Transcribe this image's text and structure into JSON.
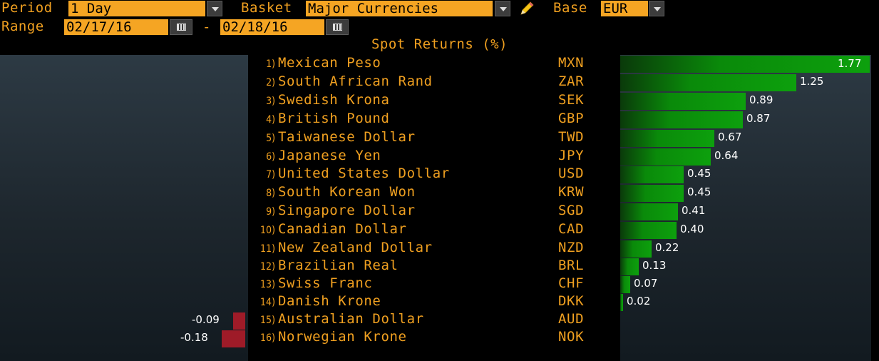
{
  "controls": {
    "period_label": "Period",
    "period_value": "1 Day",
    "basket_label": "Basket",
    "basket_value": "Major Currencies",
    "base_label": "Base",
    "base_value": "EUR",
    "range_label": "Range",
    "range_start": "02/17/16",
    "range_separator": "-",
    "range_end": "02/18/16"
  },
  "icons": {
    "dropdown": "chevron-down-icon",
    "calendar": "calendar-icon",
    "edit": "pencil-icon"
  },
  "colors": {
    "accent": "#f0a020",
    "field_bg": "#f5a523",
    "positive": "#0da00d",
    "negative": "#9e1b28"
  },
  "chart_data": {
    "type": "bar",
    "title": "Spot Returns (%)",
    "orientation": "horizontal-diverging",
    "categories": [
      "Mexican Peso",
      "South African Rand",
      "Swedish Krona",
      "British Pound",
      "Taiwanese Dollar",
      "Japanese Yen",
      "United States Dollar",
      "South Korean Won",
      "Singapore Dollar",
      "Canadian Dollar",
      "New Zealand Dollar",
      "Brazilian Real",
      "Swiss Franc",
      "Danish Krone",
      "Australian Dollar",
      "Norwegian Krone"
    ],
    "ranks": [
      "1)",
      "2)",
      "3)",
      "4)",
      "5)",
      "6)",
      "7)",
      "8)",
      "9)",
      "10)",
      "11)",
      "12)",
      "13)",
      "14)",
      "15)",
      "16)"
    ],
    "codes": [
      "MXN",
      "ZAR",
      "SEK",
      "GBP",
      "TWD",
      "JPY",
      "USD",
      "KRW",
      "SGD",
      "CAD",
      "NZD",
      "BRL",
      "CHF",
      "DKK",
      "AUD",
      "NOK"
    ],
    "values": [
      1.77,
      1.25,
      0.89,
      0.87,
      0.67,
      0.64,
      0.45,
      0.45,
      0.41,
      0.4,
      0.22,
      0.13,
      0.07,
      0.02,
      -0.09,
      -0.18
    ],
    "value_labels": [
      "1.77",
      "1.25",
      "0.89",
      "0.87",
      "0.67",
      "0.64",
      "0.45",
      "0.45",
      "0.41",
      "0.40",
      "0.22",
      "0.13",
      "0.07",
      "0.02",
      "-0.09",
      "-0.18"
    ]
  }
}
